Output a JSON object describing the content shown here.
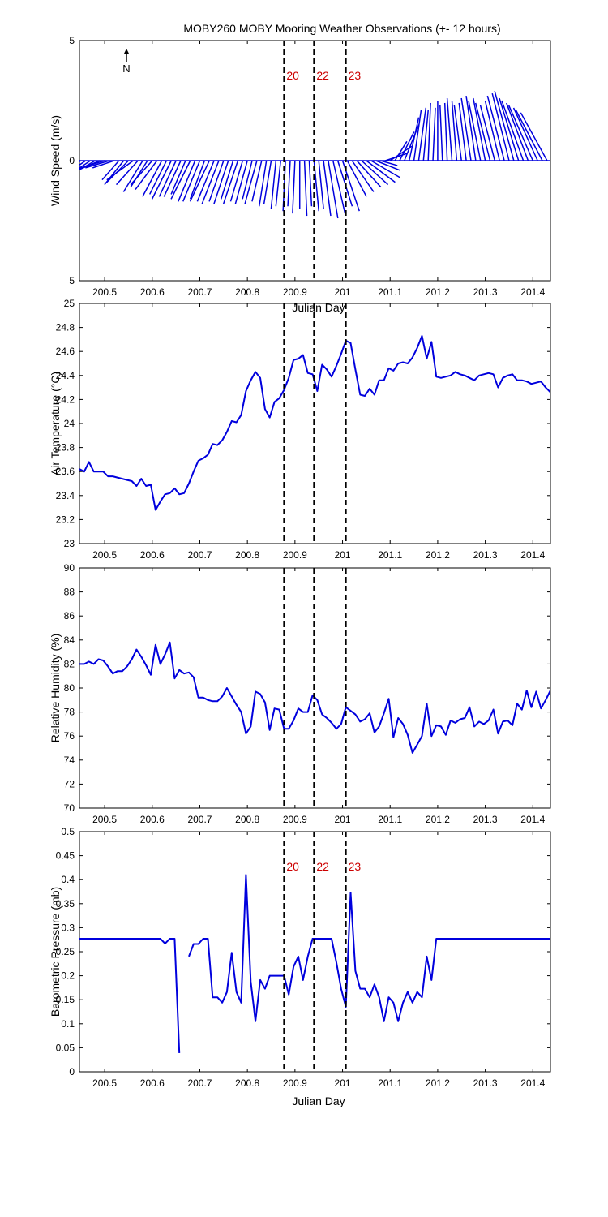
{
  "figure_title": "MOBY260 MOBY Mooring Weather Observations (+- 12 hours)",
  "north_label": "N",
  "xlabel": "Julian Day",
  "xlabel_hidden": "Julian Day",
  "x_ticks": [
    "200.5",
    "200.6",
    "200.7",
    "200.8",
    "200.9",
    "201",
    "201.1",
    "201.2",
    "201.3",
    "201.4"
  ],
  "marker_labels": [
    "20",
    "22",
    "23"
  ],
  "colors": {
    "series": "#0000dd",
    "marker_text": "#cc0000",
    "axes": "#000000"
  },
  "chart_data": [
    {
      "type": "line",
      "subtype": "wind-stick",
      "ylabel": "Wind Speed (m/s)",
      "xlim": [
        200.447,
        201.437
      ],
      "ylim": [
        -5,
        5
      ],
      "y_ticks": [
        "5",
        "0",
        "5"
      ],
      "y_tick_values": [
        5,
        0,
        -5
      ],
      "markers": [
        200.877,
        200.94,
        201.007
      ],
      "marker_labels_shown": true,
      "series": [
        {
          "name": "",
          "x": [
            200.45,
            200.46,
            200.47,
            200.48,
            200.49,
            200.5,
            200.51,
            200.52,
            200.53,
            200.54,
            200.55,
            200.56,
            200.57,
            200.58,
            200.59,
            200.6,
            200.61,
            200.62,
            200.63,
            200.64,
            200.65,
            200.66,
            200.67,
            200.68,
            200.69,
            200.7,
            200.71,
            200.72,
            200.73,
            200.74,
            200.75,
            200.76,
            200.77,
            200.78,
            200.79,
            200.8,
            200.81,
            200.82,
            200.83,
            200.84,
            200.85,
            200.86,
            200.87,
            200.88,
            200.89,
            200.9,
            200.91,
            200.92,
            200.93,
            200.94,
            200.95,
            200.96,
            200.97,
            200.98,
            200.99,
            201.0,
            201.01,
            201.02,
            201.03,
            201.04,
            201.05,
            201.06,
            201.07,
            201.08,
            201.09,
            201.1,
            201.11,
            201.12,
            201.13,
            201.14,
            201.15,
            201.16,
            201.17,
            201.18,
            201.19,
            201.2,
            201.21,
            201.22,
            201.23,
            201.24,
            201.25,
            201.26,
            201.27,
            201.28,
            201.29,
            201.3,
            201.31,
            201.32,
            201.33,
            201.34,
            201.35,
            201.36,
            201.37,
            201.38,
            201.39,
            201.4,
            201.41,
            201.42,
            201.43
          ],
          "u": [
            -1.2,
            -1.3,
            -1.5,
            -1.2,
            -1.4,
            -1.3,
            -1.0,
            -0.9,
            -0.7,
            -0.8,
            -0.9,
            -1.1,
            -0.9,
            -0.8,
            -0.7,
            -0.9,
            -0.9,
            -0.8,
            -0.7,
            -0.8,
            -0.7,
            -0.7,
            -0.6,
            -0.8,
            -0.7,
            -0.7,
            -0.6,
            -0.8,
            -0.7,
            -0.7,
            -0.6,
            -0.6,
            -0.5,
            -0.6,
            -0.5,
            -0.5,
            -0.4,
            -0.5,
            -0.4,
            -0.3,
            -0.3,
            -0.2,
            -0.2,
            -0.1,
            -0.1,
            -0.1,
            0.0,
            0.1,
            0.1,
            0.2,
            0.2,
            0.3,
            0.4,
            0.5,
            0.6,
            0.7,
            0.8,
            0.9,
            1.0,
            1.1,
            1.2,
            1.2,
            1.0,
            0.7,
            0.9,
            0.9,
            0.5,
            0.6,
            0.6,
            0.4,
            0.3,
            0.3,
            0.2,
            0.1,
            0.1,
            0.0,
            -0.1,
            -0.1,
            -0.2,
            -0.2,
            -0.3,
            -0.3,
            -0.4,
            -0.4,
            -0.5,
            -0.5,
            -0.6,
            -0.6,
            -0.6,
            -0.7,
            -0.7,
            -0.8,
            -0.8,
            -0.9,
            -0.9,
            -1.0,
            -1.0,
            -1.1,
            -1.1
          ],
          "v": [
            -0.8,
            -0.9,
            -1.0,
            -0.7,
            -0.6,
            -0.4,
            -0.3,
            -0.3,
            -0.8,
            -1.0,
            -0.9,
            -0.8,
            -1.0,
            -1.3,
            -1.1,
            -1.0,
            -1.2,
            -1.5,
            -1.4,
            -1.6,
            -1.5,
            -1.5,
            -1.4,
            -1.6,
            -1.7,
            -1.7,
            -1.6,
            -1.7,
            -1.7,
            -1.8,
            -1.7,
            -1.8,
            -1.6,
            -1.8,
            -1.7,
            -1.8,
            -1.6,
            -1.8,
            -1.7,
            -1.9,
            -1.8,
            -2.0,
            -1.9,
            -2.1,
            -1.9,
            -2.2,
            -2.0,
            -2.3,
            -1.9,
            -2.1,
            -2.0,
            -2.3,
            -2.4,
            -2.2,
            -1.9,
            -2.1,
            -1.5,
            -1.3,
            -1.1,
            -1.0,
            -0.9,
            -0.7,
            -0.4,
            -0.2,
            0.3,
            0.6,
            0.8,
            1.2,
            1.5,
            1.8,
            2.1,
            2.2,
            2.1,
            2.4,
            2.2,
            2.5,
            2.3,
            2.4,
            2.6,
            2.5,
            2.3,
            2.4,
            2.6,
            2.7,
            2.5,
            2.6,
            2.4,
            2.3,
            2.5,
            2.7,
            2.8,
            2.9,
            2.6,
            2.5,
            2.4,
            2.3,
            2.2,
            2.1,
            2.0
          ]
        }
      ]
    },
    {
      "type": "line",
      "ylabel": "Air Temperature (°C)",
      "xlim": [
        200.447,
        201.437
      ],
      "ylim": [
        23,
        25
      ],
      "y_ticks": [
        "25",
        "24.8",
        "24.6",
        "24.4",
        "24.2",
        "24",
        "23.8",
        "23.6",
        "23.4",
        "23.2",
        "23"
      ],
      "y_tick_values": [
        25,
        24.8,
        24.6,
        24.4,
        24.2,
        24,
        23.8,
        23.6,
        23.4,
        23.2,
        23
      ],
      "markers": [
        200.877,
        200.94,
        201.007
      ],
      "marker_labels_shown": false,
      "series": [
        {
          "name": "",
          "x": [
            200.447,
            200.457,
            200.467,
            200.477,
            200.487,
            200.497,
            200.507,
            200.517,
            200.527,
            200.537,
            200.547,
            200.557,
            200.567,
            200.577,
            200.587,
            200.597,
            200.607,
            200.617,
            200.627,
            200.637,
            200.647,
            200.657,
            200.667,
            200.677,
            200.687,
            200.697,
            200.707,
            200.717,
            200.727,
            200.737,
            200.747,
            200.757,
            200.767,
            200.777,
            200.787,
            200.797,
            200.807,
            200.817,
            200.827,
            200.837,
            200.847,
            200.857,
            200.867,
            200.877,
            200.887,
            200.897,
            200.907,
            200.917,
            200.927,
            200.937,
            200.947,
            200.957,
            200.967,
            200.977,
            200.987,
            200.997,
            201.007,
            201.017,
            201.027,
            201.037,
            201.047,
            201.057,
            201.067,
            201.077,
            201.087,
            201.097,
            201.107,
            201.117,
            201.127,
            201.137,
            201.147,
            201.157,
            201.167,
            201.177,
            201.187,
            201.197,
            201.207,
            201.217,
            201.227,
            201.237,
            201.247,
            201.257,
            201.267,
            201.277,
            201.287,
            201.297,
            201.307,
            201.317,
            201.327,
            201.337,
            201.347,
            201.357,
            201.367,
            201.377,
            201.387,
            201.397,
            201.407,
            201.417,
            201.427,
            201.437
          ],
          "y": [
            23.62,
            23.6,
            23.68,
            23.6,
            23.6,
            23.6,
            23.56,
            23.56,
            23.55,
            23.54,
            23.53,
            23.52,
            23.48,
            23.54,
            23.48,
            23.49,
            23.28,
            23.35,
            23.41,
            23.42,
            23.46,
            23.41,
            23.42,
            23.5,
            23.6,
            23.69,
            23.71,
            23.74,
            23.83,
            23.82,
            23.86,
            23.93,
            24.02,
            24.01,
            24.07,
            24.27,
            24.36,
            24.43,
            24.38,
            24.12,
            24.05,
            24.18,
            24.21,
            24.28,
            24.38,
            24.53,
            24.54,
            24.57,
            24.42,
            24.41,
            24.27,
            24.49,
            24.45,
            24.39,
            24.48,
            24.58,
            24.69,
            24.67,
            24.45,
            24.24,
            24.23,
            24.29,
            24.24,
            24.36,
            24.36,
            24.46,
            24.44,
            24.5,
            24.51,
            24.5,
            24.55,
            24.63,
            24.73,
            24.54,
            24.68,
            24.39,
            24.38,
            24.39,
            24.4,
            24.43,
            24.41,
            24.4,
            24.38,
            24.36,
            24.4,
            24.41,
            24.42,
            24.41,
            24.3,
            24.38,
            24.4,
            24.41,
            24.36,
            24.36,
            24.35,
            24.33,
            24.34,
            24.35,
            24.3,
            24.26
          ]
        }
      ]
    },
    {
      "type": "line",
      "ylabel": "Relative Humidity (%)",
      "xlim": [
        200.447,
        201.437
      ],
      "ylim": [
        70,
        90
      ],
      "y_ticks": [
        "90",
        "88",
        "86",
        "84",
        "82",
        "80",
        "78",
        "76",
        "74",
        "72",
        "70"
      ],
      "y_tick_values": [
        90,
        88,
        86,
        84,
        82,
        80,
        78,
        76,
        74,
        72,
        70
      ],
      "markers": [
        200.877,
        200.94,
        201.007
      ],
      "marker_labels_shown": false,
      "series": [
        {
          "name": "",
          "x": [
            200.447,
            200.457,
            200.467,
            200.477,
            200.487,
            200.497,
            200.507,
            200.517,
            200.527,
            200.537,
            200.547,
            200.557,
            200.567,
            200.577,
            200.587,
            200.597,
            200.607,
            200.617,
            200.627,
            200.637,
            200.647,
            200.657,
            200.667,
            200.677,
            200.687,
            200.697,
            200.707,
            200.717,
            200.727,
            200.737,
            200.747,
            200.757,
            200.767,
            200.777,
            200.787,
            200.797,
            200.807,
            200.817,
            200.827,
            200.837,
            200.847,
            200.857,
            200.867,
            200.877,
            200.887,
            200.897,
            200.907,
            200.917,
            200.927,
            200.937,
            200.947,
            200.957,
            200.967,
            200.977,
            200.987,
            200.997,
            201.007,
            201.017,
            201.027,
            201.037,
            201.047,
            201.057,
            201.067,
            201.077,
            201.087,
            201.097,
            201.107,
            201.117,
            201.127,
            201.137,
            201.147,
            201.157,
            201.167,
            201.177,
            201.187,
            201.197,
            201.207,
            201.217,
            201.227,
            201.237,
            201.247,
            201.257,
            201.267,
            201.277,
            201.287,
            201.297,
            201.307,
            201.317,
            201.327,
            201.337,
            201.347,
            201.357,
            201.367,
            201.377,
            201.387,
            201.397,
            201.407,
            201.417,
            201.427,
            201.437
          ],
          "y": [
            82.0,
            82.0,
            82.2,
            82.0,
            82.4,
            82.3,
            81.8,
            81.2,
            81.4,
            81.4,
            81.8,
            82.4,
            83.2,
            82.6,
            81.9,
            81.1,
            83.6,
            82.0,
            82.8,
            83.8,
            80.8,
            81.5,
            81.2,
            81.3,
            80.9,
            79.2,
            79.2,
            79.0,
            78.9,
            78.9,
            79.3,
            80.0,
            79.3,
            78.6,
            78.0,
            76.2,
            76.8,
            79.7,
            79.5,
            78.8,
            76.5,
            78.3,
            78.2,
            76.6,
            76.6,
            77.3,
            78.3,
            78.0,
            78.0,
            79.4,
            79.0,
            77.8,
            77.5,
            77.1,
            76.6,
            77.0,
            78.4,
            78.1,
            77.8,
            77.2,
            77.4,
            77.9,
            76.3,
            76.8,
            77.9,
            79.1,
            75.9,
            77.5,
            77.0,
            76.1,
            74.6,
            75.3,
            76.0,
            78.7,
            76.0,
            76.9,
            76.8,
            76.1,
            77.3,
            77.1,
            77.4,
            77.5,
            78.4,
            76.8,
            77.2,
            77.0,
            77.3,
            78.2,
            76.2,
            77.2,
            77.3,
            76.9,
            78.7,
            78.2,
            79.8,
            78.4,
            79.7,
            78.3,
            79.0,
            79.8
          ]
        }
      ]
    },
    {
      "type": "line",
      "ylabel": "Barometric Pressure (mb)",
      "xlim": [
        200.447,
        201.437
      ],
      "ylim": [
        0,
        0.5
      ],
      "y_ticks": [
        "0.5",
        "0.45",
        "0.4",
        "0.35",
        "0.3",
        "0.25",
        "0.2",
        "0.15",
        "0.1",
        "0.05",
        "0"
      ],
      "y_tick_values": [
        0.5,
        0.45,
        0.4,
        0.35,
        0.3,
        0.25,
        0.2,
        0.15,
        0.1,
        0.05,
        0
      ],
      "markers": [
        200.877,
        200.94,
        201.007
      ],
      "marker_labels_shown": true,
      "series": [
        {
          "name": "",
          "segments": [
            {
              "x": [
                200.447,
                200.617,
                200.627,
                200.637,
                200.647,
                200.657
              ],
              "y": [
                0.277,
                0.277,
                0.267,
                0.277,
                0.277,
                0.039
              ]
            },
            {
              "x": [
                200.677,
                200.687,
                200.697,
                200.707,
                200.717,
                200.727,
                200.737,
                200.747,
                200.757,
                200.767,
                200.777,
                200.787,
                200.797,
                200.807,
                200.817,
                200.827,
                200.837,
                200.847,
                200.857,
                200.867,
                200.877,
                200.887,
                200.897,
                200.907,
                200.917,
                200.927,
                200.937,
                200.947,
                200.957,
                200.967,
                200.977,
                200.987,
                200.997,
                201.007,
                201.017,
                201.027,
                201.037,
                201.047,
                201.057,
                201.067,
                201.077,
                201.087,
                201.097,
                201.107,
                201.117,
                201.127,
                201.137,
                201.147,
                201.157,
                201.167,
                201.177,
                201.187,
                201.197,
                201.437
              ],
              "y": [
                0.24,
                0.266,
                0.266,
                0.277,
                0.277,
                0.155,
                0.155,
                0.144,
                0.166,
                0.248,
                0.166,
                0.144,
                0.41,
                0.188,
                0.105,
                0.191,
                0.173,
                0.2,
                0.2,
                0.2,
                0.2,
                0.161,
                0.219,
                0.24,
                0.191,
                0.24,
                0.277,
                0.277,
                0.277,
                0.277,
                0.277,
                0.228,
                0.173,
                0.135,
                0.373,
                0.21,
                0.173,
                0.173,
                0.155,
                0.182,
                0.155,
                0.105,
                0.155,
                0.144,
                0.105,
                0.144,
                0.166,
                0.144,
                0.166,
                0.155,
                0.24,
                0.191,
                0.277,
                0.277
              ]
            }
          ]
        }
      ]
    }
  ]
}
